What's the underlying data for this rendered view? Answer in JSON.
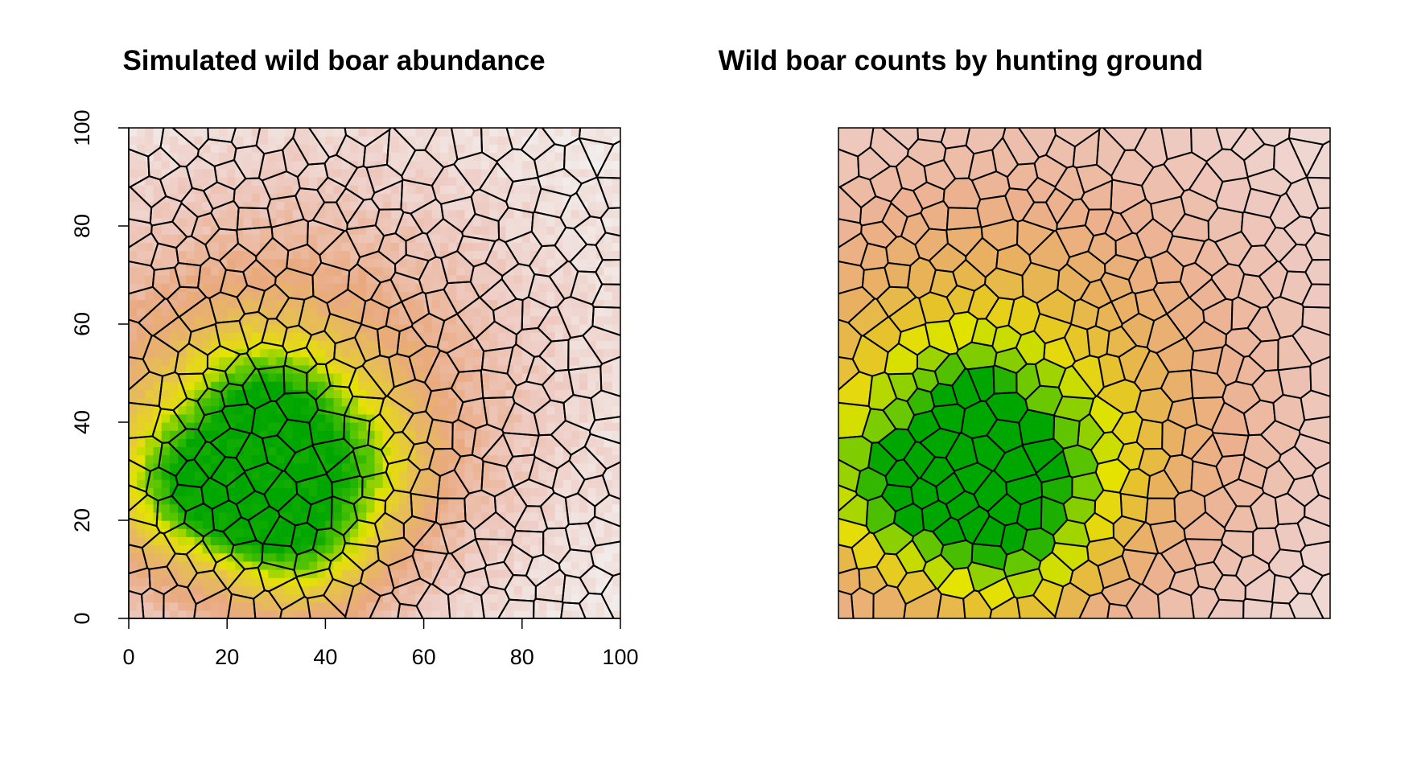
{
  "chart_data": [
    {
      "type": "heatmap",
      "title": "Simulated wild boar abundance",
      "xlabel": "",
      "ylabel": "",
      "xlim": [
        0,
        100
      ],
      "ylim": [
        0,
        100
      ],
      "x_ticks": [
        "0",
        "20",
        "40",
        "60",
        "80",
        "100"
      ],
      "y_ticks": [
        "0",
        "20",
        "40",
        "60",
        "80",
        "100"
      ],
      "grid": false,
      "legend": "none",
      "color_scale": [
        "#f2f2f2",
        "#eec9c0",
        "#e9a97f",
        "#e6bf52",
        "#e5e300",
        "#52c400",
        "#00a600"
      ],
      "overlay": "hunting ground polygons (Voronoi tessellation)",
      "hotspots": [
        {
          "x": 24,
          "y": 25,
          "level": "high"
        },
        {
          "x": 12,
          "y": 27,
          "level": "elevated"
        },
        {
          "x": 35,
          "y": 16,
          "level": "elevated"
        },
        {
          "x": 28,
          "y": 42,
          "level": "elevated"
        },
        {
          "x": 45,
          "y": 32,
          "level": "moderate"
        }
      ]
    },
    {
      "type": "heatmap",
      "title": "Wild boar counts by hunting ground",
      "xlabel": "",
      "ylabel": "",
      "axes": "none",
      "xlim": [
        0,
        100
      ],
      "ylim": [
        0,
        100
      ],
      "legend": "none",
      "color_scale": [
        "#f2f2f2",
        "#eec9c0",
        "#ecb08e",
        "#e8b05f",
        "#e6c42a",
        "#e5e300",
        "#9ad300",
        "#65c700",
        "#00a600"
      ],
      "regions": "hunting grounds colored by total count"
    }
  ]
}
